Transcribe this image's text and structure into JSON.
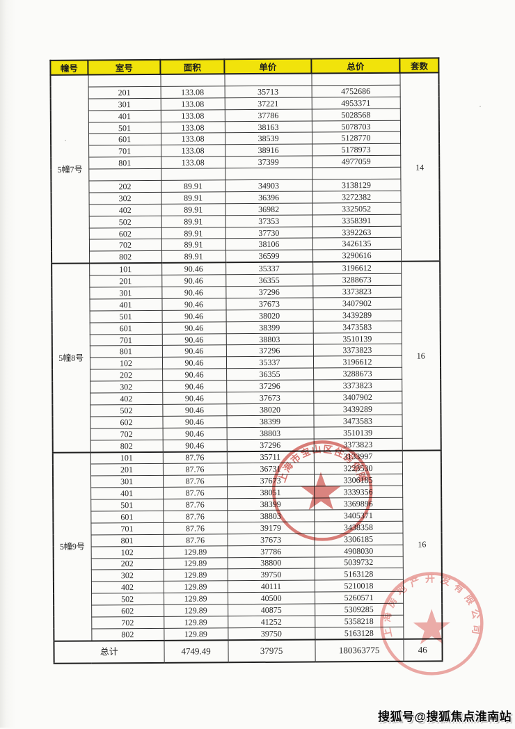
{
  "page": {
    "watermark": "搜狐号@搜狐焦点淮南站"
  },
  "table": {
    "headers": [
      "幢号",
      "室号",
      "面积",
      "单价",
      "总价",
      "套数"
    ],
    "sections": [
      {
        "building": "5幢7号",
        "unit_count": "14",
        "rows": [
          [
            "",
            "",
            "",
            ""
          ],
          [
            "201",
            "133.08",
            "35713",
            "4752686"
          ],
          [
            "301",
            "133.08",
            "37221",
            "4953371"
          ],
          [
            "401",
            "133.08",
            "37786",
            "5028568"
          ],
          [
            "501",
            "133.08",
            "38163",
            "5078703"
          ],
          [
            "601",
            "133.08",
            "38539",
            "5128770"
          ],
          [
            "701",
            "133.08",
            "38916",
            "5178973"
          ],
          [
            "801",
            "133.08",
            "37399",
            "4977059"
          ],
          [
            "",
            "",
            "",
            ""
          ],
          [
            "202",
            "89.91",
            "34903",
            "3138129"
          ],
          [
            "302",
            "89.91",
            "36396",
            "3272382"
          ],
          [
            "402",
            "89.91",
            "36982",
            "3325052"
          ],
          [
            "502",
            "89.91",
            "37353",
            "3358391"
          ],
          [
            "602",
            "89.91",
            "37730",
            "3392263"
          ],
          [
            "702",
            "89.91",
            "38106",
            "3426135"
          ],
          [
            "802",
            "89.91",
            "36599",
            "3290616"
          ]
        ]
      },
      {
        "building": "5幢8号",
        "unit_count": "16",
        "rows": [
          [
            "101",
            "90.46",
            "35337",
            "3196612"
          ],
          [
            "201",
            "90.46",
            "36355",
            "3288673"
          ],
          [
            "301",
            "90.46",
            "37296",
            "3373823"
          ],
          [
            "401",
            "90.46",
            "37673",
            "3407902"
          ],
          [
            "501",
            "90.46",
            "38020",
            "3439289"
          ],
          [
            "601",
            "90.46",
            "38399",
            "3473583"
          ],
          [
            "701",
            "90.46",
            "38803",
            "3510139"
          ],
          [
            "801",
            "90.46",
            "37296",
            "3373823"
          ],
          [
            "102",
            "90.46",
            "35337",
            "3196612"
          ],
          [
            "202",
            "90.46",
            "36355",
            "3288673"
          ],
          [
            "302",
            "90.46",
            "37296",
            "3373823"
          ],
          [
            "402",
            "90.46",
            "37673",
            "3407902"
          ],
          [
            "502",
            "90.46",
            "38020",
            "3439289"
          ],
          [
            "602",
            "90.46",
            "38399",
            "3473583"
          ],
          [
            "702",
            "90.46",
            "38803",
            "3510139"
          ],
          [
            "802",
            "90.46",
            "37296",
            "3373823"
          ]
        ]
      },
      {
        "building": "5幢9号",
        "unit_count": "16",
        "rows": [
          [
            "101",
            "87.76",
            "35711",
            "3133997"
          ],
          [
            "201",
            "87.76",
            "36731",
            "3223530"
          ],
          [
            "301",
            "87.76",
            "37673",
            "3306185"
          ],
          [
            "401",
            "87.76",
            "38051",
            "3339356"
          ],
          [
            "501",
            "87.76",
            "38399",
            "3369896"
          ],
          [
            "601",
            "87.76",
            "38803",
            "3405371"
          ],
          [
            "701",
            "87.76",
            "39179",
            "3438358"
          ],
          [
            "801",
            "87.76",
            "37673",
            "3306185"
          ],
          [
            "102",
            "129.89",
            "37786",
            "4908030"
          ],
          [
            "202",
            "129.89",
            "38800",
            "5039732"
          ],
          [
            "302",
            "129.89",
            "39750",
            "5163128"
          ],
          [
            "402",
            "129.89",
            "40111",
            "5210018"
          ],
          [
            "502",
            "129.89",
            "40500",
            "5260571"
          ],
          [
            "602",
            "129.89",
            "40875",
            "5309285"
          ],
          [
            "702",
            "129.89",
            "41252",
            "5358218"
          ],
          [
            "802",
            "129.89",
            "39750",
            "5163128"
          ]
        ]
      }
    ],
    "total_row": {
      "label": "总计",
      "area": "4749.49",
      "unit_price": "37975",
      "total_price": "180363775",
      "unit_count": "46"
    }
  },
  "stamps": [
    {
      "arc_text": "上海市宝山区住房保障",
      "color": "#c8453e"
    },
    {
      "arc_text": "上海房地产开发有限公司",
      "color": "#e2837e"
    }
  ]
}
